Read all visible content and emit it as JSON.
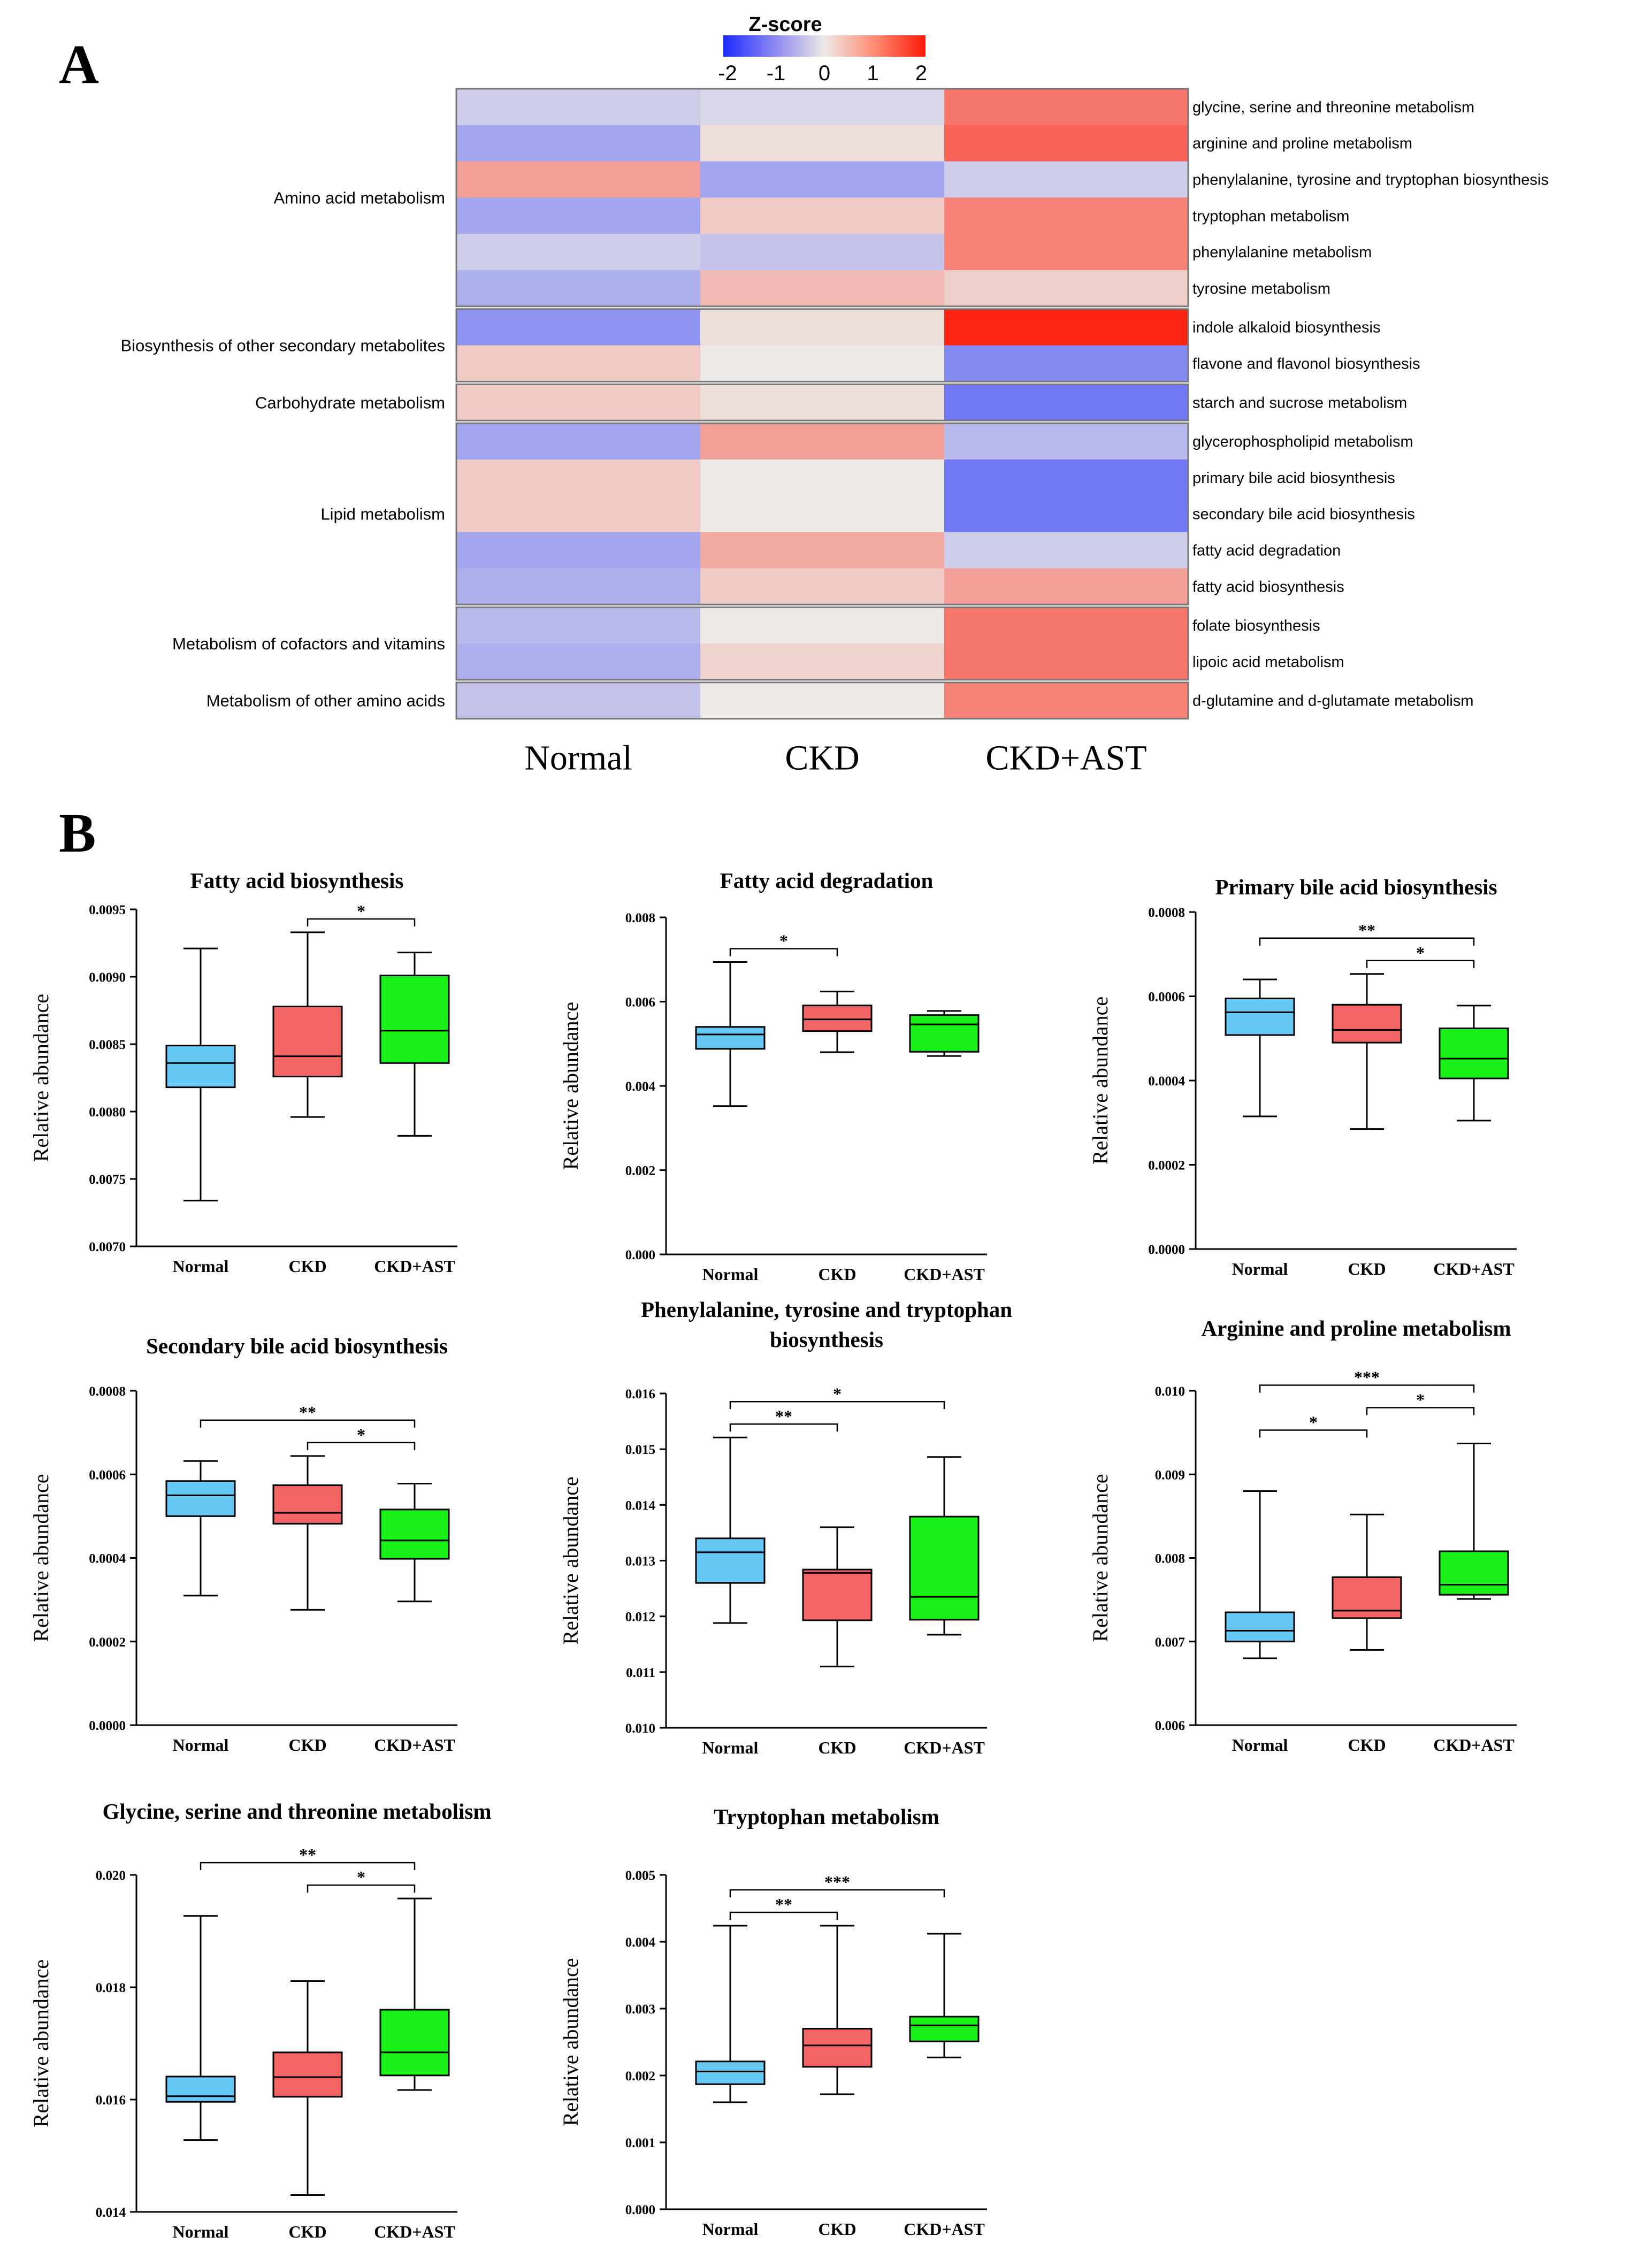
{
  "panels": {
    "a_label": "A",
    "b_label": "B"
  },
  "colors": {
    "heat_low": "#1c2cff",
    "heat_mid": "#ede9e6",
    "heat_high": "#ff1a08",
    "normal": "#66c8f5",
    "ckd": "#f36464",
    "ckd_ast": "#18f018",
    "axis": "#000000"
  },
  "heatmap": {
    "legend": {
      "title": "Z-score",
      "ticks": [
        "-2",
        "-1",
        "0",
        "1",
        "2"
      ],
      "range": [
        -2,
        2
      ]
    },
    "columns": [
      "Normal",
      "CKD",
      "CKD+AST"
    ],
    "categories": [
      {
        "name": "Amino acid metabolism",
        "rows": [
          {
            "pathway": "glycine, serine and threonine metabolism",
            "values": [
              -0.3,
              -0.2,
              1.1
            ]
          },
          {
            "pathway": "arginine and proline metabolism",
            "values": [
              -0.7,
              0.1,
              1.3
            ]
          },
          {
            "pathway": "phenylalanine, tyrosine and tryptophan biosynthesis",
            "values": [
              0.7,
              -0.7,
              -0.3
            ]
          },
          {
            "pathway": "tryptophan metabolism",
            "values": [
              -0.7,
              0.3,
              1.0
            ]
          },
          {
            "pathway": "phenylalanine metabolism",
            "values": [
              -0.3,
              -0.4,
              1.0
            ]
          },
          {
            "pathway": "tyrosine metabolism",
            "values": [
              -0.6,
              0.45,
              0.25
            ]
          }
        ]
      },
      {
        "name": "Biosynthesis of other secondary metabolites",
        "rows": [
          {
            "pathway": "indole alkaloid biosynthesis",
            "values": [
              -0.9,
              0.1,
              1.9
            ]
          },
          {
            "pathway": "flavone and flavonol biosynthesis",
            "values": [
              0.3,
              0.0,
              -1.0
            ]
          }
        ]
      },
      {
        "name": "Carbohydrate metabolism",
        "rows": [
          {
            "pathway": "starch and sucrose metabolism",
            "values": [
              0.3,
              0.1,
              -1.2
            ]
          }
        ]
      },
      {
        "name": "Lipid metabolism",
        "rows": [
          {
            "pathway": "glycerophospholipid metabolism",
            "values": [
              -0.7,
              0.7,
              -0.5
            ]
          },
          {
            "pathway": "primary bile acid biosynthesis",
            "values": [
              0.3,
              0.0,
              -1.2
            ]
          },
          {
            "pathway": "secondary bile acid biosynthesis",
            "values": [
              0.3,
              0.0,
              -1.2
            ]
          },
          {
            "pathway": "fatty acid degradation",
            "values": [
              -0.7,
              0.6,
              -0.3
            ]
          },
          {
            "pathway": "fatty acid biosynthesis",
            "values": [
              -0.6,
              0.3,
              0.7
            ]
          }
        ]
      },
      {
        "name": "Metabolism of cofactors and vitamins",
        "rows": [
          {
            "pathway": "folate biosynthesis",
            "values": [
              -0.5,
              0.0,
              1.1
            ]
          },
          {
            "pathway": "lipoic acid metabolism",
            "values": [
              -0.6,
              0.2,
              1.1
            ]
          }
        ]
      },
      {
        "name": "Metabolism of other amino acids",
        "rows": [
          {
            "pathway": "d-glutamine and d-glutamate metabolism",
            "values": [
              -0.4,
              0.0,
              1.0
            ]
          }
        ]
      }
    ]
  },
  "chart_data": [
    {
      "type": "heatmap",
      "title": "Z-score",
      "x": [
        "Normal",
        "CKD",
        "CKD+AST"
      ],
      "y_categories": [
        "Amino acid metabolism",
        "Biosynthesis of other secondary metabolites",
        "Carbohydrate metabolism",
        "Lipid metabolism",
        "Metabolism of cofactors and vitamins",
        "Metabolism of other amino acids"
      ],
      "color_range": [
        -2,
        2
      ],
      "note": "cell values are in heatmap.categories[].rows[].values"
    },
    {
      "type": "box",
      "title": "Fatty acid biosynthesis",
      "ylabel": "Relative abundance",
      "ylim": [
        0.007,
        0.0095
      ],
      "yticks": [
        "0.0070",
        "0.0075",
        "0.0080",
        "0.0085",
        "0.0090",
        "0.0095"
      ],
      "categories": [
        "Normal",
        "CKD",
        "CKD+AST"
      ],
      "boxes": [
        {
          "min": 0.00734,
          "q1": 0.00818,
          "median": 0.00836,
          "q3": 0.00849,
          "max": 0.00921
        },
        {
          "min": 0.00796,
          "q1": 0.00826,
          "median": 0.00841,
          "q3": 0.00878,
          "max": 0.00933
        },
        {
          "min": 0.00782,
          "q1": 0.00836,
          "median": 0.0086,
          "q3": 0.00901,
          "max": 0.00918
        }
      ],
      "significance": [
        {
          "from": 1,
          "to": 2,
          "label": "*"
        }
      ]
    },
    {
      "type": "box",
      "title": "Fatty acid degradation",
      "ylabel": "Relative abundance",
      "ylim": [
        0.0,
        0.008
      ],
      "yticks": [
        "0.000",
        "0.002",
        "0.004",
        "0.006",
        "0.008"
      ],
      "categories": [
        "Normal",
        "CKD",
        "CKD+AST"
      ],
      "boxes": [
        {
          "min": 0.00352,
          "q1": 0.00488,
          "median": 0.00522,
          "q3": 0.0054,
          "max": 0.00694
        },
        {
          "min": 0.0048,
          "q1": 0.0053,
          "median": 0.00558,
          "q3": 0.00591,
          "max": 0.00624
        },
        {
          "min": 0.00471,
          "q1": 0.00481,
          "median": 0.00546,
          "q3": 0.00568,
          "max": 0.00578
        }
      ],
      "significance": [
        {
          "from": 0,
          "to": 1,
          "label": "*"
        }
      ]
    },
    {
      "type": "box",
      "title": "Primary bile acid biosynthesis",
      "ylabel": "Relative abundance",
      "ylim": [
        0.0,
        0.0008
      ],
      "yticks": [
        "0.0000",
        "0.0002",
        "0.0004",
        "0.0006",
        "0.0008"
      ],
      "categories": [
        "Normal",
        "CKD",
        "CKD+AST"
      ],
      "boxes": [
        {
          "min": 0.000315,
          "q1": 0.000508,
          "median": 0.000562,
          "q3": 0.000595,
          "max": 0.00064
        },
        {
          "min": 0.000285,
          "q1": 0.00049,
          "median": 0.00052,
          "q3": 0.00058,
          "max": 0.000653
        },
        {
          "min": 0.000305,
          "q1": 0.000405,
          "median": 0.000452,
          "q3": 0.000524,
          "max": 0.000578
        }
      ],
      "significance": [
        {
          "from": 0,
          "to": 2,
          "label": "**"
        },
        {
          "from": 1,
          "to": 2,
          "label": "*"
        }
      ]
    },
    {
      "type": "box",
      "title": "Secondary bile acid biosynthesis",
      "ylabel": "Relative abundance",
      "ylim": [
        0.0,
        0.0008
      ],
      "yticks": [
        "0.0000",
        "0.0002",
        "0.0004",
        "0.0006",
        "0.0008"
      ],
      "categories": [
        "Normal",
        "CKD",
        "CKD+AST"
      ],
      "boxes": [
        {
          "min": 0.00031,
          "q1": 0.0005,
          "median": 0.00055,
          "q3": 0.000584,
          "max": 0.000632
        },
        {
          "min": 0.000276,
          "q1": 0.000482,
          "median": 0.000508,
          "q3": 0.000574,
          "max": 0.000644
        },
        {
          "min": 0.000296,
          "q1": 0.000398,
          "median": 0.000442,
          "q3": 0.000516,
          "max": 0.000578
        }
      ],
      "significance": [
        {
          "from": 0,
          "to": 2,
          "label": "**"
        },
        {
          "from": 1,
          "to": 2,
          "label": "*"
        }
      ]
    },
    {
      "type": "box",
      "title": "Phenylalanine, tyrosine and tryptophan biosynthesis",
      "title_lines": [
        "Phenylalanine, tyrosine and tryptophan",
        "biosynthesis"
      ],
      "ylabel": "Relative abundance",
      "ylim": [
        0.01,
        0.016
      ],
      "yticks": [
        "0.010",
        "0.011",
        "0.012",
        "0.013",
        "0.014",
        "0.015",
        "0.016"
      ],
      "categories": [
        "Normal",
        "CKD",
        "CKD+AST"
      ],
      "boxes": [
        {
          "min": 0.01188,
          "q1": 0.0126,
          "median": 0.01315,
          "q3": 0.0134,
          "max": 0.01521
        },
        {
          "min": 0.0111,
          "q1": 0.01193,
          "median": 0.01278,
          "q3": 0.01284,
          "max": 0.0136
        },
        {
          "min": 0.01167,
          "q1": 0.01194,
          "median": 0.01235,
          "q3": 0.01379,
          "max": 0.01486
        }
      ],
      "significance": [
        {
          "from": 0,
          "to": 1,
          "label": "**"
        },
        {
          "from": 0,
          "to": 2,
          "label": "*"
        }
      ]
    },
    {
      "type": "box",
      "title": "Arginine and proline metabolism",
      "ylabel": "Relative abundance",
      "ylim": [
        0.006,
        0.01
      ],
      "yticks": [
        "0.006",
        "0.007",
        "0.008",
        "0.009",
        "0.010"
      ],
      "categories": [
        "Normal",
        "CKD",
        "CKD+AST"
      ],
      "boxes": [
        {
          "min": 0.0068,
          "q1": 0.007,
          "median": 0.00713,
          "q3": 0.00735,
          "max": 0.0088
        },
        {
          "min": 0.0069,
          "q1": 0.00728,
          "median": 0.00737,
          "q3": 0.00777,
          "max": 0.00852
        },
        {
          "min": 0.00751,
          "q1": 0.00756,
          "median": 0.00768,
          "q3": 0.00808,
          "max": 0.00937
        }
      ],
      "significance": [
        {
          "from": 0,
          "to": 1,
          "label": "*"
        },
        {
          "from": 0,
          "to": 2,
          "label": "***"
        },
        {
          "from": 1,
          "to": 2,
          "label": "*"
        }
      ]
    },
    {
      "type": "box",
      "title": "Glycine, serine and threonine metabolism",
      "ylabel": "Relative abundance",
      "ylim": [
        0.014,
        0.02
      ],
      "yticks": [
        "0.014",
        "0.016",
        "0.018",
        "0.020"
      ],
      "categories": [
        "Normal",
        "CKD",
        "CKD+AST"
      ],
      "boxes": [
        {
          "min": 0.01528,
          "q1": 0.01596,
          "median": 0.01606,
          "q3": 0.01641,
          "max": 0.01927
        },
        {
          "min": 0.0143,
          "q1": 0.01605,
          "median": 0.0164,
          "q3": 0.01684,
          "max": 0.01811
        },
        {
          "min": 0.01617,
          "q1": 0.01643,
          "median": 0.01684,
          "q3": 0.0176,
          "max": 0.01958
        }
      ],
      "significance": [
        {
          "from": 0,
          "to": 2,
          "label": "**"
        },
        {
          "from": 1,
          "to": 2,
          "label": "*"
        }
      ]
    },
    {
      "type": "box",
      "title": "Tryptophan metabolism",
      "ylabel": "Relative abundance",
      "ylim": [
        0.0,
        0.005
      ],
      "yticks": [
        "0.000",
        "0.001",
        "0.002",
        "0.003",
        "0.004",
        "0.005"
      ],
      "categories": [
        "Normal",
        "CKD",
        "CKD+AST"
      ],
      "boxes": [
        {
          "min": 0.0016,
          "q1": 0.00187,
          "median": 0.00206,
          "q3": 0.00221,
          "max": 0.00424
        },
        {
          "min": 0.00172,
          "q1": 0.00213,
          "median": 0.00245,
          "q3": 0.0027,
          "max": 0.00424
        },
        {
          "min": 0.00227,
          "q1": 0.00251,
          "median": 0.00275,
          "q3": 0.00288,
          "max": 0.00412
        }
      ],
      "significance": [
        {
          "from": 0,
          "to": 1,
          "label": "**"
        },
        {
          "from": 0,
          "to": 2,
          "label": "***"
        }
      ]
    }
  ]
}
